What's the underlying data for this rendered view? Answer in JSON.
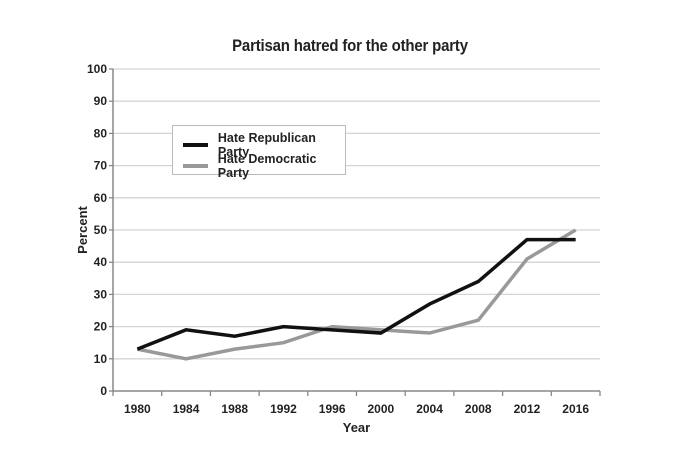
{
  "chart_data": {
    "type": "line",
    "title": "Partisan hatred for the other party",
    "xlabel": "Year",
    "ylabel": "Percent",
    "categories": [
      "1980",
      "1984",
      "1988",
      "1992",
      "1996",
      "2000",
      "2004",
      "2008",
      "2012",
      "2016"
    ],
    "series": [
      {
        "name": "Hate Republican Party",
        "color": "#111111",
        "values": [
          13,
          19,
          17,
          20,
          19,
          18,
          27,
          34,
          47,
          47
        ]
      },
      {
        "name": "Hate Democratic Party",
        "color": "#999999",
        "values": [
          13,
          10,
          13,
          15,
          20,
          19,
          18,
          22,
          41,
          50
        ]
      }
    ],
    "ylim": [
      0,
      100
    ],
    "yticks": [
      0,
      10,
      20,
      30,
      40,
      50,
      60,
      70,
      80,
      90,
      100
    ],
    "grid": true,
    "legend_position": "upper left"
  }
}
